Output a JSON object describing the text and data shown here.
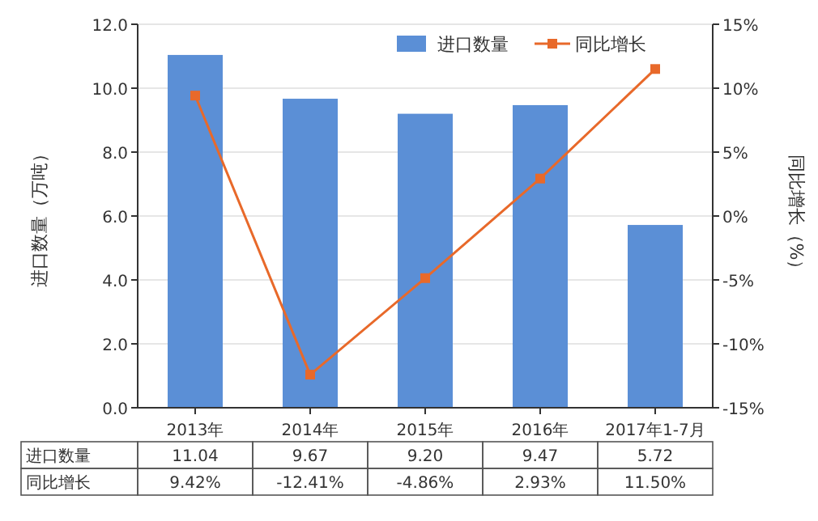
{
  "chart_data": {
    "type": "bar",
    "ylabel": "进口数量（万吨）",
    "y2label": "同比增长（%）",
    "categories": [
      "2013年",
      "2014年",
      "2015年",
      "2016年",
      "2017年1-7月"
    ],
    "series": [
      {
        "name": "进口数量",
        "color": "#5b8fd6",
        "values": [
          11.04,
          9.67,
          9.2,
          9.47,
          5.72
        ],
        "value_labels": [
          "11.04",
          "9.67",
          "9.20",
          "9.47",
          "5.72"
        ]
      },
      {
        "name": "同比增长",
        "type": "line",
        "axis": "y2",
        "color": "#e8692a",
        "marker": "square",
        "values": [
          9.42,
          -12.41,
          -4.86,
          2.93,
          11.5
        ],
        "value_labels": [
          "9.42%",
          "-12.41%",
          "-4.86%",
          "2.93%",
          "11.50%"
        ]
      }
    ],
    "ylim": [
      0,
      12
    ],
    "yticks": [
      {
        "value": 0,
        "label": "0.0"
      },
      {
        "value": 2,
        "label": "2.0"
      },
      {
        "value": 4,
        "label": "4.0"
      },
      {
        "value": 6,
        "label": "6.0"
      },
      {
        "value": 8,
        "label": "8.0"
      },
      {
        "value": 10,
        "label": "10.0"
      },
      {
        "value": 12,
        "label": "12.0"
      }
    ],
    "y2lim": [
      -15,
      15
    ],
    "y2ticks": [
      {
        "value": -15,
        "label": "-15%"
      },
      {
        "value": -10,
        "label": "-10%"
      },
      {
        "value": -5,
        "label": "-5%"
      },
      {
        "value": 0,
        "label": "0%"
      },
      {
        "value": 5,
        "label": "5%"
      },
      {
        "value": 10,
        "label": "10%"
      },
      {
        "value": 15,
        "label": "15%"
      }
    ],
    "grid": "y",
    "legend": "top right"
  }
}
